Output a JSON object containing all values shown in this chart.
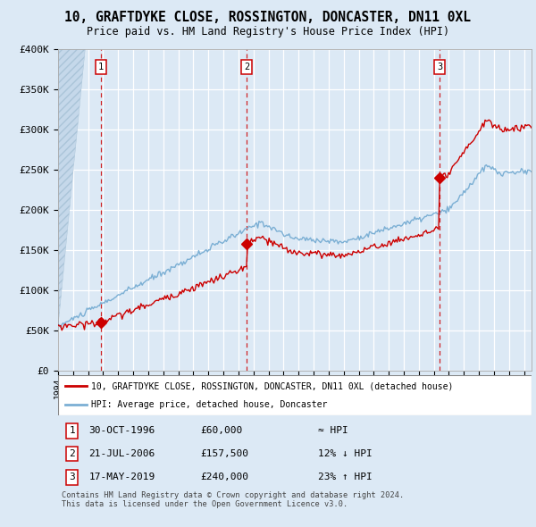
{
  "title": "10, GRAFTDYKE CLOSE, ROSSINGTON, DONCASTER, DN11 0XL",
  "subtitle": "Price paid vs. HM Land Registry's House Price Index (HPI)",
  "background_color": "#dce9f5",
  "plot_bg_color": "#dce9f5",
  "grid_color": "#ffffff",
  "red_line_color": "#cc0000",
  "blue_line_color": "#7bafd4",
  "vline_color": "#cc0000",
  "marker_color": "#cc0000",
  "sale_dates": [
    1996.83,
    2006.55,
    2019.38
  ],
  "sale_prices": [
    60000,
    157500,
    240000
  ],
  "sale_labels": [
    "1",
    "2",
    "3"
  ],
  "legend_entries": [
    "10, GRAFTDYKE CLOSE, ROSSINGTON, DONCASTER, DN11 0XL (detached house)",
    "HPI: Average price, detached house, Doncaster"
  ],
  "table_rows": [
    {
      "num": "1",
      "date": "30-OCT-1996",
      "price": "£60,000",
      "rel": "≈ HPI"
    },
    {
      "num": "2",
      "date": "21-JUL-2006",
      "price": "£157,500",
      "rel": "12% ↓ HPI"
    },
    {
      "num": "3",
      "date": "17-MAY-2019",
      "price": "£240,000",
      "rel": "23% ↑ HPI"
    }
  ],
  "footer": "Contains HM Land Registry data © Crown copyright and database right 2024.\nThis data is licensed under the Open Government Licence v3.0.",
  "ylim": [
    0,
    400000
  ],
  "xlim": [
    1994.0,
    2025.5
  ],
  "yticks": [
    0,
    50000,
    100000,
    150000,
    200000,
    250000,
    300000,
    350000,
    400000
  ],
  "ytick_labels": [
    "£0",
    "£50K",
    "£100K",
    "£150K",
    "£200K",
    "£250K",
    "£300K",
    "£350K",
    "£400K"
  ]
}
